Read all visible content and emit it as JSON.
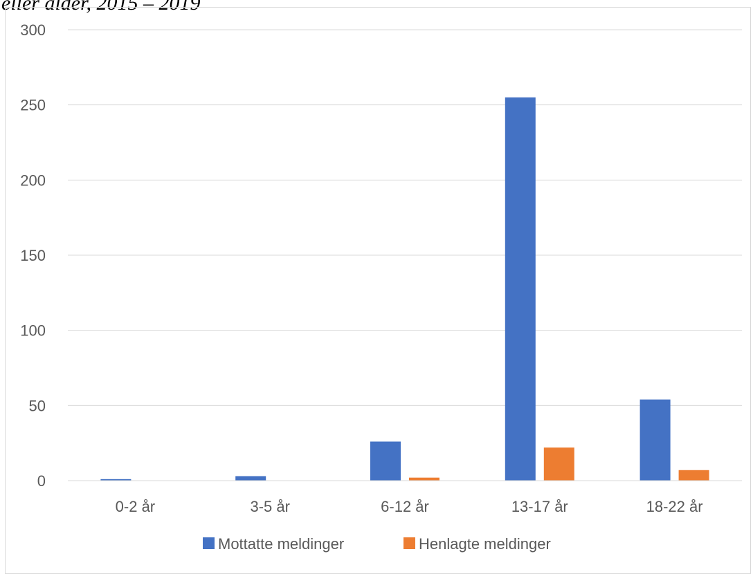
{
  "caption": "eller alder, 2015 – 2019",
  "chart_data": {
    "type": "bar",
    "title": "",
    "xlabel": "",
    "ylabel": "",
    "categories": [
      "0-2 år",
      "3-5 år",
      "6-12 år",
      "13-17 år",
      "18-22 år"
    ],
    "series": [
      {
        "name": "Mottatte meldinger",
        "color": "#4472c4",
        "values": [
          1,
          3,
          26,
          255,
          54
        ]
      },
      {
        "name": "Henlagte meldinger",
        "color": "#ed7d31",
        "values": [
          0,
          0,
          2,
          22,
          7
        ]
      }
    ],
    "ylim": [
      0,
      300
    ],
    "yticks": [
      0,
      50,
      100,
      150,
      200,
      250,
      300
    ],
    "grid": true,
    "legend": "bottom"
  }
}
